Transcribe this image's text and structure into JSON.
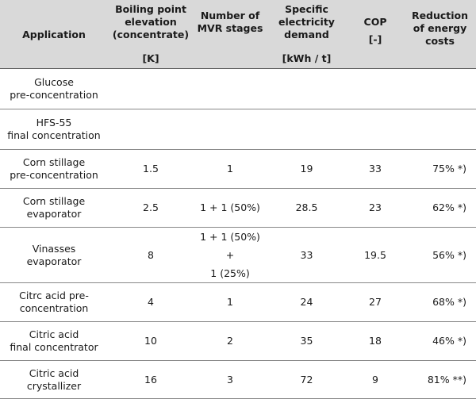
{
  "table": {
    "headers": [
      {
        "line1": "Application",
        "line2": ""
      },
      {
        "line1": "Boiling point\nelevation\n(concentrate)",
        "line2": "[K]"
      },
      {
        "line1": "Number of\nMVR stages",
        "line2": ""
      },
      {
        "line1": "Specific\nelectricity\ndemand",
        "line2": "[kWh / t]"
      },
      {
        "line1": "COP",
        "line2": "[-]"
      },
      {
        "line1": "Reduction\nof energy\ncosts",
        "line2": ""
      }
    ],
    "rows": [
      {
        "application": "Glucose\npre-concentration",
        "bpe": "",
        "stages": "",
        "electricity": "",
        "cop": "",
        "reduction": ""
      },
      {
        "application": "HFS-55\nfinal concentration",
        "bpe": "",
        "stages": "",
        "electricity": "",
        "cop": "",
        "reduction": ""
      },
      {
        "application": "Corn stillage\npre-concentration",
        "bpe": "1.5",
        "stages": "1",
        "electricity": "19",
        "cop": "33",
        "reduction": "75% *)"
      },
      {
        "application": "Corn stillage\nevaporator",
        "bpe": "2.5",
        "stages": "1 + 1 (50%)",
        "electricity": "28.5",
        "cop": "23",
        "reduction": "62% *)"
      },
      {
        "application": "Vinasses\nevaporator",
        "bpe": "8",
        "stages": "1 + 1 (50%)\n+\n1 (25%)",
        "electricity": "33",
        "cop": "19.5",
        "reduction": "56% *)"
      },
      {
        "application": "Citrc acid pre-\nconcentration",
        "bpe": "4",
        "stages": "1",
        "electricity": "24",
        "cop": "27",
        "reduction": "68% *)"
      },
      {
        "application": "Citric acid\nfinal concentrator",
        "bpe": "10",
        "stages": "2",
        "electricity": "35",
        "cop": "18",
        "reduction": "46% *)"
      },
      {
        "application": "Citric acid\ncrystallizer",
        "bpe": "16",
        "stages": "3",
        "electricity": "72",
        "cop": "9",
        "reduction": "81% **)"
      }
    ]
  }
}
